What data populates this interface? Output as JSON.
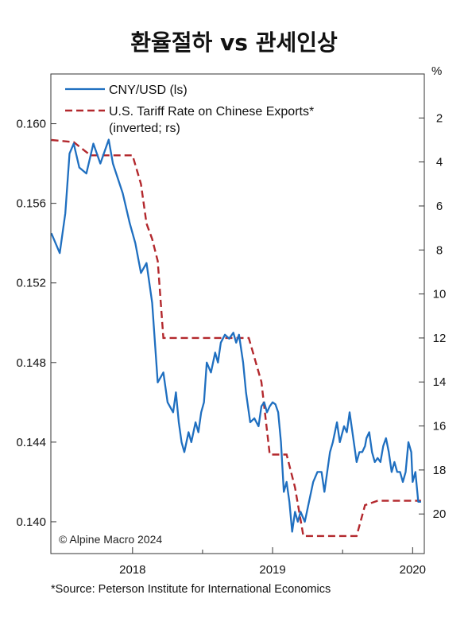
{
  "title": "환율절하 vs 관세인상",
  "footnote": "*Source: Peterson Institute for International Economics",
  "colors": {
    "cny": "#1f6fc0",
    "tariff": "#b3282d",
    "frame": "#333333"
  },
  "chart_data": {
    "type": "line",
    "copyright": "© Alpine Macro 2024",
    "legend": {
      "placement": "top-left",
      "cny_label": "CNY/USD (ls)",
      "tariff_label_1": "U.S. Tariff Rate on Chinese Exports*",
      "tariff_label_2": "(inverted; rs)"
    },
    "x_range": [
      "2017-06",
      "2020-02"
    ],
    "x_ticks": [
      {
        "label": "2018",
        "x": 2018.0
      },
      {
        "label": "2019",
        "x": 2019.0
      },
      {
        "label": "2020",
        "x": 2020.0
      }
    ],
    "x_minor_ticks": [
      2018.5,
      2019.5
    ],
    "left_axis": {
      "ylim": [
        0.1384,
        0.1625
      ],
      "ticks": [
        "0.160",
        "0.156",
        "0.152",
        "0.148",
        "0.144",
        "0.140"
      ]
    },
    "right_axis": {
      "unit": "%",
      "inverted": true,
      "ylim": [
        0,
        21.8
      ],
      "ticks": [
        "2",
        "4",
        "6",
        "8",
        "10",
        "12",
        "14",
        "16",
        "18",
        "20"
      ]
    },
    "series": [
      {
        "name": "CNY/USD (ls)",
        "axis": "left",
        "x": [
          2017.42,
          2017.48,
          2017.52,
          2017.55,
          2017.58,
          2017.62,
          2017.67,
          2017.72,
          2017.77,
          2017.83,
          2017.86,
          2017.93,
          2017.98,
          2018.02,
          2018.06,
          2018.1,
          2018.14,
          2018.18,
          2018.22,
          2018.25,
          2018.29,
          2018.31,
          2018.33,
          2018.35,
          2018.37,
          2018.4,
          2018.42,
          2018.45,
          2018.47,
          2018.49,
          2018.51,
          2018.53,
          2018.56,
          2018.59,
          2018.61,
          2018.63,
          2018.66,
          2018.69,
          2018.72,
          2018.74,
          2018.76,
          2018.79,
          2018.81,
          2018.84,
          2018.87,
          2018.9,
          2018.92,
          2018.94,
          2018.96,
          2018.98,
          2019.0,
          2019.02,
          2019.04,
          2019.06,
          2019.08,
          2019.1,
          2019.12,
          2019.14,
          2019.16,
          2019.18,
          2019.2,
          2019.23,
          2019.26,
          2019.29,
          2019.32,
          2019.35,
          2019.37,
          2019.39,
          2019.41,
          2019.43,
          2019.46,
          2019.48,
          2019.51,
          2019.53,
          2019.55,
          2019.58,
          2019.6,
          2019.62,
          2019.64,
          2019.66,
          2019.67,
          2019.69,
          2019.71,
          2019.73,
          2019.75,
          2019.77,
          2019.79,
          2019.81,
          2019.83,
          2019.85,
          2019.87,
          2019.89,
          2019.91,
          2019.93,
          2019.95,
          2019.97,
          2019.99,
          2020.0,
          2020.02,
          2020.04,
          2020.06
        ],
        "values": [
          0.1545,
          0.1535,
          0.1555,
          0.1585,
          0.159,
          0.1578,
          0.1575,
          0.159,
          0.158,
          0.1592,
          0.158,
          0.1565,
          0.155,
          0.154,
          0.1525,
          0.153,
          0.151,
          0.147,
          0.1475,
          0.146,
          0.1455,
          0.1465,
          0.145,
          0.144,
          0.1435,
          0.1445,
          0.144,
          0.145,
          0.1445,
          0.1455,
          0.146,
          0.148,
          0.1475,
          0.1485,
          0.148,
          0.149,
          0.1494,
          0.1492,
          0.1495,
          0.149,
          0.1494,
          0.148,
          0.1465,
          0.145,
          0.1452,
          0.1448,
          0.1458,
          0.146,
          0.1455,
          0.1458,
          0.146,
          0.1459,
          0.1455,
          0.144,
          0.1415,
          0.142,
          0.141,
          0.1395,
          0.1405,
          0.14,
          0.1405,
          0.14,
          0.141,
          0.142,
          0.1425,
          0.1425,
          0.1415,
          0.1425,
          0.1435,
          0.144,
          0.145,
          0.144,
          0.1448,
          0.1445,
          0.1455,
          0.144,
          0.143,
          0.1435,
          0.1435,
          0.1438,
          0.1442,
          0.1445,
          0.1435,
          0.143,
          0.1432,
          0.143,
          0.1438,
          0.1442,
          0.1435,
          0.1425,
          0.143,
          0.1425,
          0.1425,
          0.142,
          0.1425,
          0.144,
          0.1435,
          0.142,
          0.1425,
          0.141,
          0.141
        ]
      },
      {
        "name": "U.S. Tariff Rate on Chinese Exports* (inverted; rs)",
        "axis": "right",
        "x": [
          2017.42,
          2017.58,
          2017.7,
          2018.0,
          2018.06,
          2018.1,
          2018.14,
          2018.18,
          2018.22,
          2018.25,
          2018.29,
          2018.67,
          2018.83,
          2018.92,
          2018.98,
          2019.1,
          2019.16,
          2019.22,
          2019.6,
          2019.66,
          2019.75,
          2019.78,
          2020.06
        ],
        "values": [
          3.0,
          3.1,
          3.7,
          3.7,
          5.0,
          6.8,
          7.5,
          8.5,
          12.0,
          12.0,
          12.0,
          12.0,
          12.0,
          14.0,
          17.3,
          17.3,
          18.8,
          21.0,
          21.0,
          19.6,
          19.4,
          19.4,
          19.4
        ]
      }
    ]
  }
}
